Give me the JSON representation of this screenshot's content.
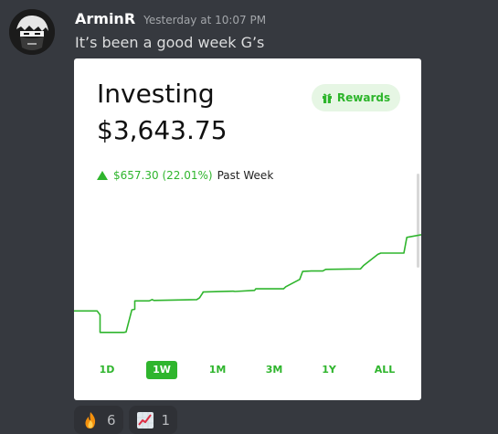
{
  "message": {
    "username": "ArminR",
    "timestamp": "Yesterday at 10:07 PM",
    "text": "It’s been a good week G’s"
  },
  "card": {
    "title": "Investing",
    "amount": "$3,643.75",
    "rewards_label": "Rewards",
    "change_value": "$657.30 (22.01%)",
    "change_period": "Past Week",
    "accent": "#2fb52d",
    "tabs": [
      {
        "label": "1D",
        "active": false
      },
      {
        "label": "1W",
        "active": true
      },
      {
        "label": "1M",
        "active": false
      },
      {
        "label": "3M",
        "active": false
      },
      {
        "label": "1Y",
        "active": false
      },
      {
        "label": "ALL",
        "active": false
      }
    ]
  },
  "chart_data": {
    "type": "line",
    "title": "",
    "xlabel": "",
    "ylabel": "",
    "grid": false,
    "x": [
      0,
      0.4,
      0.45,
      0.45,
      0.86,
      0.9,
      1,
      1.05,
      1.05,
      1.3,
      1.35,
      1.38,
      2.12,
      2.17,
      2.23,
      2.23,
      2.75,
      2.78,
      3.12,
      3.14,
      3.62,
      3.66,
      3.9,
      3.95,
      4.1,
      4.3,
      4.35,
      4.95,
      5.0,
      5.25,
      5.3,
      5.7,
      5.75,
      6.0
    ],
    "values": [
      3300,
      3300,
      3285,
      3218,
      3218,
      3220,
      3304,
      3306,
      3338,
      3338,
      3343,
      3340,
      3343,
      3350,
      3370,
      3372,
      3375,
      3374,
      3378,
      3384,
      3384,
      3392,
      3420,
      3450,
      3452,
      3452,
      3458,
      3460,
      3472,
      3515,
      3520,
      3520,
      3580,
      3590
    ]
  },
  "reactions": [
    {
      "icon": "fire-emoji-icon",
      "count": "6"
    },
    {
      "icon": "chart-increasing-emoji-icon",
      "count": "1"
    }
  ]
}
